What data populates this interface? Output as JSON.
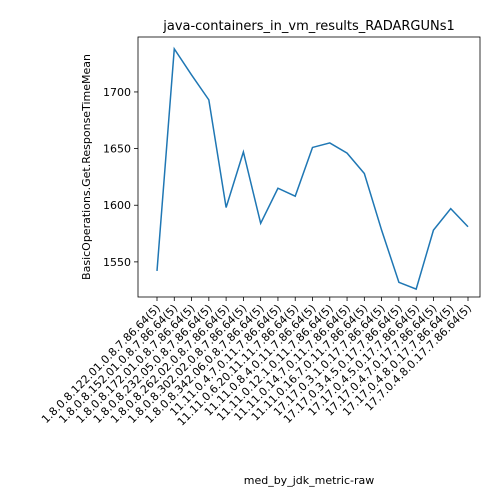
{
  "chart_data": {
    "type": "line",
    "title": "java-containers_in_vm_results_RADARGUNs1",
    "x_label": "med_by_jdk_metric-raw",
    "y_label": "BasicOperations.Get.ResponseTimeMean",
    "categories": [
      "1.8.0.8.122.01.0.8.7.86.64(5)",
      "1.8.0.8.152.01.0.8.7.86.64(5)",
      "1.8.0.8.172.01.0.8.7.86.64(5)",
      "1.8.0.8.232.05.0.8.7.86.64(5)",
      "1.8.0.8.262.02.0.8.7.86.64(5)",
      "1.8.0.8.302.02.0.8.7.86.64(5)",
      "1.8.0.8.342.06.0.8.7.86.64(5)",
      "11.11.0.4.7.0.11.7.86.64(5)",
      "11.11.0.6.20.11.11.7.86.64(5)",
      "11.11.0.8.4.0.11.7.86.64(5)",
      "11.11.0.12.1.0.11.7.86.64(5)",
      "11.11.0.14.7.0.11.7.86.64(5)",
      "11.11.0.16.7.0.11.7.86.64(5)",
      "17.17.0.3.1.0.17.7.86.64(5)",
      "17.17.0.3.4.5.0.17.7.86.64(5)",
      "17.17.0.4.5.0.17.7.86.64(5)",
      "17.17.0.4.7.0.17.7.86.64(5)",
      "17.17.0.4.8.0.17.7.86.64(5)",
      "17.7.0.4.8.0.17.7.86.64(5)"
    ],
    "series": [
      {
        "name": "BasicOperations.Get.ResponseTimeMean",
        "color": "#1f77b4",
        "values": [
          1542,
          1738,
          1715,
          1693,
          1598,
          1647,
          1584,
          1615,
          1608,
          1651,
          1655,
          1646,
          1628,
          1578,
          1532,
          1526,
          1578,
          1597,
          1581
        ]
      }
    ],
    "ylim": [
      1519,
      1748.5
    ],
    "yticks": [
      1550,
      1600,
      1650,
      1700
    ],
    "grid": false
  }
}
